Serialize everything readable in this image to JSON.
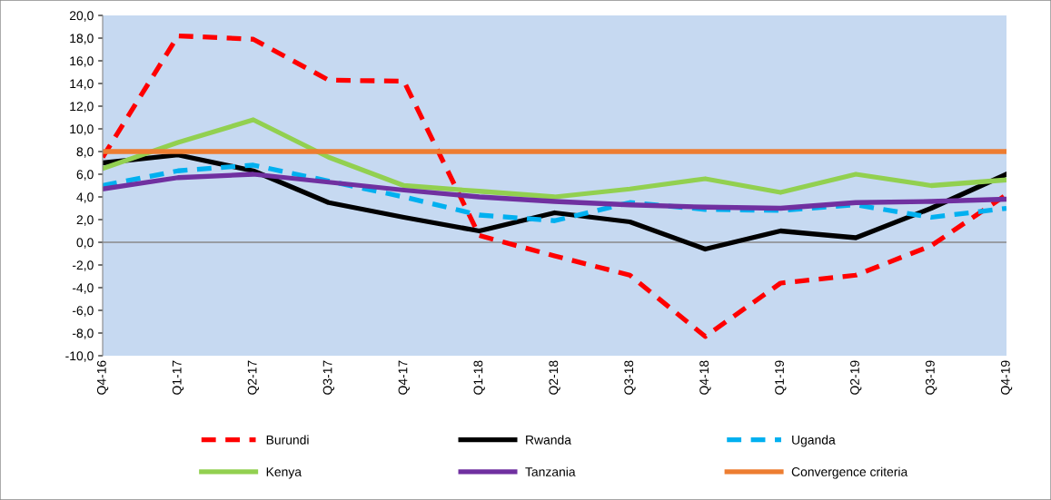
{
  "chart_data": {
    "type": "line",
    "categories": [
      "Q4-16",
      "Q1-17",
      "Q2-17",
      "Q3-17",
      "Q4-17",
      "Q1-18",
      "Q2-18",
      "Q3-18",
      "Q4-18",
      "Q1-19",
      "Q2-19",
      "Q3-19",
      "Q4-19"
    ],
    "ylim": [
      -10,
      20
    ],
    "yticks": [
      {
        "value": -10,
        "label": "-10,0"
      },
      {
        "value": -8,
        "label": "-8,0"
      },
      {
        "value": -6,
        "label": "-6,0"
      },
      {
        "value": -4,
        "label": "-4,0"
      },
      {
        "value": -2,
        "label": "-2,0"
      },
      {
        "value": 0,
        "label": "0,0"
      },
      {
        "value": 2,
        "label": "2,0"
      },
      {
        "value": 4,
        "label": "4,0"
      },
      {
        "value": 6,
        "label": "6,0"
      },
      {
        "value": 8,
        "label": "8,0"
      },
      {
        "value": 10,
        "label": "10,0"
      },
      {
        "value": 12,
        "label": "12,0"
      },
      {
        "value": 14,
        "label": "14,0"
      },
      {
        "value": 16,
        "label": "16,0"
      },
      {
        "value": 18,
        "label": "18,0"
      },
      {
        "value": 20,
        "label": "20,0"
      }
    ],
    "grid": false,
    "legend": "bottom",
    "marker": "none",
    "ref_lines": [
      {
        "axis": "y",
        "value": 0,
        "color": "#888888"
      }
    ],
    "series": [
      {
        "name": "Burundi",
        "color": "#ff0000",
        "line_style": "dashed",
        "values": [
          7.5,
          18.2,
          17.9,
          14.3,
          14.2,
          0.6,
          -1.2,
          -2.9,
          -8.3,
          -3.6,
          -2.9,
          -0.3,
          4.2
        ]
      },
      {
        "name": "Rwanda",
        "color": "#000000",
        "line_style": "solid",
        "values": [
          7.0,
          7.7,
          6.3,
          3.5,
          2.2,
          1.0,
          2.6,
          1.8,
          -0.6,
          1.0,
          0.4,
          3.0,
          6.0
        ]
      },
      {
        "name": "Uganda",
        "color": "#00b0f0",
        "line_style": "dashed",
        "values": [
          5.0,
          6.3,
          6.8,
          5.4,
          4.0,
          2.4,
          1.9,
          3.5,
          2.9,
          2.8,
          3.3,
          2.2,
          3.0
        ]
      },
      {
        "name": "Kenya",
        "color": "#92d050",
        "line_style": "solid",
        "values": [
          6.5,
          8.8,
          10.8,
          7.5,
          5.0,
          4.5,
          4.0,
          4.7,
          5.6,
          4.4,
          6.0,
          5.0,
          5.5
        ]
      },
      {
        "name": "Tanzania",
        "color": "#7030a0",
        "line_style": "solid",
        "values": [
          4.7,
          5.7,
          6.0,
          5.3,
          4.6,
          4.0,
          3.6,
          3.3,
          3.1,
          3.0,
          3.5,
          3.6,
          3.8
        ]
      },
      {
        "name": "Convergence criteria",
        "color": "#ed7d31",
        "line_style": "solid",
        "values": [
          8,
          8,
          8,
          8,
          8,
          8,
          8,
          8,
          8,
          8,
          8,
          8,
          8
        ]
      }
    ]
  }
}
